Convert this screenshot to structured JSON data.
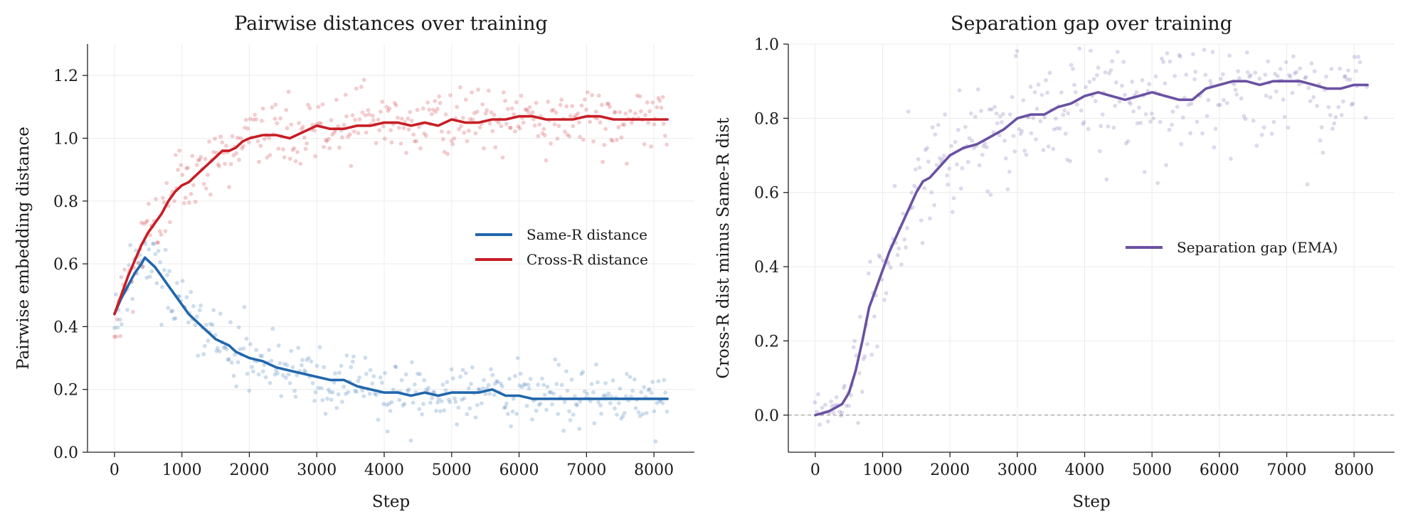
{
  "chart_data": [
    {
      "type": "line",
      "title": "Pairwise distances over training",
      "xlabel": "Step",
      "ylabel": "Pairwise embedding distance",
      "xlim": [
        -400,
        8600
      ],
      "ylim": [
        0.0,
        1.3
      ],
      "xticks": [
        0,
        1000,
        2000,
        3000,
        4000,
        5000,
        6000,
        7000,
        8000
      ],
      "yticks": [
        0.0,
        0.2,
        0.4,
        0.6,
        0.8,
        1.0,
        1.2
      ],
      "ytick_labels": [
        "0.0",
        "0.2",
        "0.4",
        "0.6",
        "0.8",
        "1.0",
        "1.2"
      ],
      "grid": true,
      "legend_position": "right",
      "series": [
        {
          "name": "Same-R distance",
          "color": "#2166ac",
          "x": [
            0,
            100,
            200,
            300,
            400,
            450,
            500,
            600,
            700,
            800,
            900,
            1000,
            1100,
            1200,
            1300,
            1400,
            1500,
            1600,
            1700,
            1800,
            1900,
            2000,
            2200,
            2400,
            2600,
            2800,
            3000,
            3200,
            3400,
            3600,
            3800,
            4000,
            4200,
            4400,
            4600,
            4800,
            5000,
            5200,
            5400,
            5600,
            5800,
            6000,
            6200,
            6400,
            6600,
            6800,
            7000,
            7200,
            7400,
            7600,
            7800,
            8000,
            8200
          ],
          "values": [
            0.44,
            0.49,
            0.53,
            0.57,
            0.6,
            0.62,
            0.61,
            0.59,
            0.56,
            0.53,
            0.5,
            0.47,
            0.44,
            0.42,
            0.4,
            0.38,
            0.36,
            0.35,
            0.34,
            0.32,
            0.31,
            0.3,
            0.29,
            0.27,
            0.26,
            0.25,
            0.24,
            0.23,
            0.23,
            0.21,
            0.2,
            0.19,
            0.19,
            0.18,
            0.19,
            0.18,
            0.19,
            0.19,
            0.19,
            0.2,
            0.18,
            0.18,
            0.17,
            0.17,
            0.17,
            0.17,
            0.17,
            0.17,
            0.17,
            0.17,
            0.17,
            0.17,
            0.17
          ]
        },
        {
          "name": "Cross-R distance",
          "color": "#c81d25",
          "x": [
            0,
            100,
            200,
            300,
            400,
            500,
            600,
            700,
            800,
            900,
            1000,
            1100,
            1200,
            1300,
            1400,
            1500,
            1600,
            1700,
            1800,
            1900,
            2000,
            2200,
            2400,
            2600,
            2800,
            3000,
            3200,
            3400,
            3600,
            3800,
            4000,
            4200,
            4400,
            4600,
            4800,
            5000,
            5200,
            5400,
            5600,
            5800,
            6000,
            6200,
            6400,
            6600,
            6800,
            7000,
            7200,
            7400,
            7600,
            7800,
            8000,
            8200
          ],
          "values": [
            0.44,
            0.5,
            0.56,
            0.61,
            0.66,
            0.7,
            0.73,
            0.76,
            0.8,
            0.83,
            0.85,
            0.86,
            0.88,
            0.9,
            0.92,
            0.94,
            0.96,
            0.96,
            0.97,
            0.99,
            1.0,
            1.01,
            1.01,
            1.0,
            1.02,
            1.04,
            1.03,
            1.03,
            1.04,
            1.04,
            1.05,
            1.05,
            1.04,
            1.05,
            1.04,
            1.06,
            1.05,
            1.05,
            1.06,
            1.06,
            1.07,
            1.07,
            1.06,
            1.06,
            1.06,
            1.07,
            1.07,
            1.06,
            1.06,
            1.06,
            1.06,
            1.06
          ]
        }
      ]
    },
    {
      "type": "line",
      "title": "Separation gap over training",
      "xlabel": "Step",
      "ylabel": "Cross-R dist minus Same-R dist",
      "xlim": [
        -400,
        8600
      ],
      "ylim": [
        -0.1,
        1.0
      ],
      "xticks": [
        0,
        1000,
        2000,
        3000,
        4000,
        5000,
        6000,
        7000,
        8000
      ],
      "yticks": [
        0.0,
        0.2,
        0.4,
        0.6,
        0.8,
        1.0
      ],
      "ytick_labels": [
        "0.0",
        "0.2",
        "0.4",
        "0.6",
        "0.8",
        "1.0"
      ],
      "zero_reference_line": true,
      "grid": true,
      "legend_position": "right",
      "series": [
        {
          "name": "Separation gap (EMA)",
          "color": "#6a51a3",
          "x": [
            0,
            100,
            200,
            300,
            400,
            500,
            600,
            700,
            800,
            900,
            1000,
            1100,
            1200,
            1300,
            1400,
            1500,
            1600,
            1700,
            1800,
            1900,
            2000,
            2200,
            2400,
            2600,
            2800,
            3000,
            3200,
            3400,
            3600,
            3800,
            4000,
            4200,
            4400,
            4600,
            4800,
            5000,
            5200,
            5400,
            5600,
            5800,
            6000,
            6200,
            6400,
            6600,
            6800,
            7000,
            7200,
            7400,
            7600,
            7800,
            8000,
            8200
          ],
          "values": [
            0.0,
            0.005,
            0.01,
            0.02,
            0.03,
            0.06,
            0.12,
            0.2,
            0.29,
            0.34,
            0.39,
            0.44,
            0.48,
            0.52,
            0.56,
            0.6,
            0.63,
            0.64,
            0.66,
            0.68,
            0.7,
            0.72,
            0.73,
            0.75,
            0.77,
            0.8,
            0.81,
            0.81,
            0.83,
            0.84,
            0.86,
            0.87,
            0.86,
            0.85,
            0.86,
            0.87,
            0.86,
            0.85,
            0.85,
            0.88,
            0.89,
            0.9,
            0.9,
            0.89,
            0.9,
            0.9,
            0.9,
            0.89,
            0.88,
            0.88,
            0.89,
            0.89
          ]
        }
      ]
    }
  ]
}
